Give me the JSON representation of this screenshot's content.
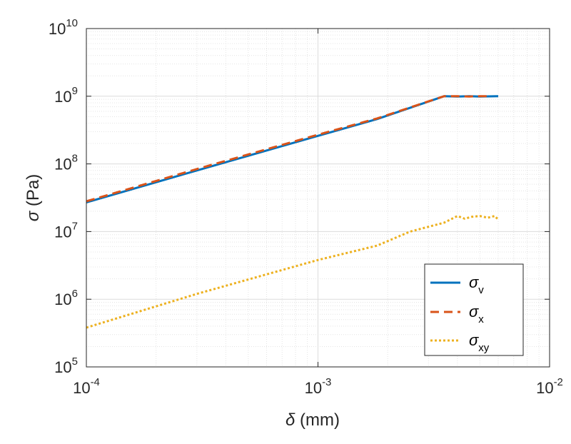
{
  "chart_data": {
    "type": "line",
    "xscale": "log",
    "yscale": "log",
    "xlim": [
      0.0001,
      0.01
    ],
    "ylim": [
      100000,
      10000000000
    ],
    "grid": true,
    "minor_grid": true,
    "legend_position": "bottom-right",
    "xlabel": {
      "symbol": "δ",
      "text": " (mm)"
    },
    "ylabel": {
      "symbol": "σ",
      "text": " (Pa)"
    },
    "x_ticks": [
      {
        "value": 0.0001,
        "base": "10",
        "exp": "-4"
      },
      {
        "value": 0.001,
        "base": "10",
        "exp": "-3"
      },
      {
        "value": 0.01,
        "base": "10",
        "exp": "-2"
      }
    ],
    "y_ticks": [
      {
        "value": 100000,
        "base": "10",
        "exp": "5"
      },
      {
        "value": 1000000,
        "base": "10",
        "exp": "6"
      },
      {
        "value": 10000000,
        "base": "10",
        "exp": "7"
      },
      {
        "value": 100000000,
        "base": "10",
        "exp": "8"
      },
      {
        "value": 1000000000,
        "base": "10",
        "exp": "9"
      },
      {
        "value": 10000000000,
        "base": "10",
        "exp": "10"
      }
    ],
    "series": [
      {
        "name": {
          "symbol": "σ",
          "sub": "v"
        },
        "color": "#0072BD",
        "style": "solid",
        "x": [
          0.0001,
          0.0003,
          0.001,
          0.0018,
          0.0035,
          0.004,
          0.0045,
          0.005,
          0.006
        ],
        "y": [
          27000000,
          80000000,
          260000000,
          460000000,
          1000000000,
          990000000,
          1000000000,
          990000000,
          1000000000
        ]
      },
      {
        "name": {
          "symbol": "σ",
          "sub": "x"
        },
        "color": "#D95319",
        "style": "dashed",
        "x": [
          0.0001,
          0.0003,
          0.001,
          0.0018,
          0.0035,
          0.004,
          0.0045,
          0.005,
          0.0055
        ],
        "y": [
          28000000,
          84000000,
          270000000,
          470000000,
          1000000000,
          1000000000,
          990000000,
          1000000000,
          1000000000
        ]
      },
      {
        "name": {
          "symbol": "σ",
          "sub": "xy"
        },
        "color": "#EDB120",
        "style": "dotted",
        "x": [
          0.0001,
          0.0003,
          0.001,
          0.0018,
          0.0025,
          0.0035,
          0.004,
          0.0043,
          0.0046,
          0.005,
          0.0054,
          0.0058,
          0.006
        ],
        "y": [
          380000,
          1200000,
          3800000,
          6200000,
          10000000,
          13500000,
          17000000,
          15500000,
          16500000,
          17000000,
          16000000,
          17000000,
          15000000
        ]
      }
    ]
  }
}
